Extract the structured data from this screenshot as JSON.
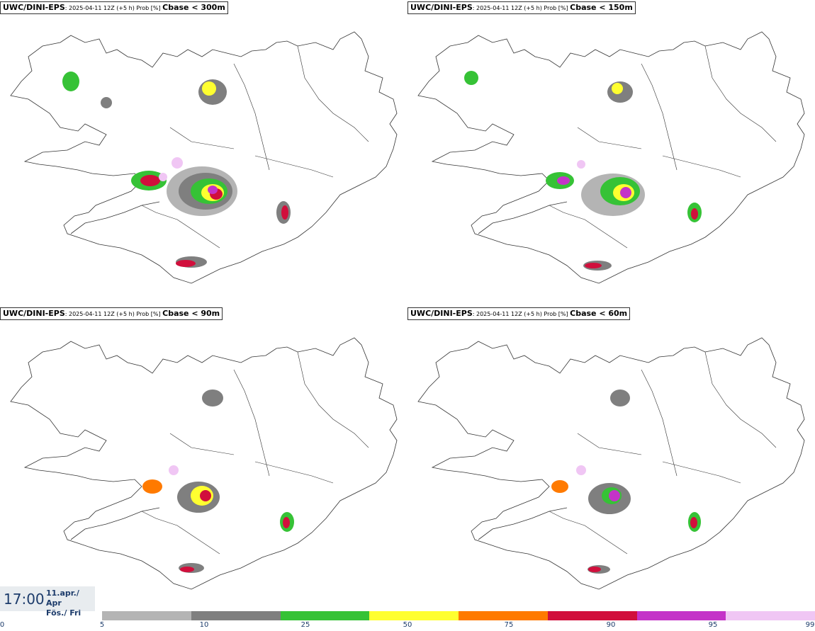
{
  "panels": [
    {
      "title_bold": "UWC/DINI-EPS",
      "title_mid": ": 2025-04-11 12Z (+5 h) Prob [%] ",
      "title_field": "Cbase < 300m"
    },
    {
      "title_bold": "UWC/DINI-EPS",
      "title_mid": ": 2025-04-11 12Z (+5 h) Prob [%] ",
      "title_field": "Cbase < 150m"
    },
    {
      "title_bold": "UWC/DINI-EPS",
      "title_mid": ": 2025-04-11 12Z (+5 h) Prob [%] ",
      "title_field": "Cbase < 90m"
    },
    {
      "title_bold": "UWC/DINI-EPS",
      "title_mid": ": 2025-04-11 12Z (+5 h) Prob [%] ",
      "title_field": "Cbase < 60m"
    }
  ],
  "time": {
    "clock": "17:00",
    "date_line": "11.apr./ Apr",
    "day_line": "Fös./ Fri"
  },
  "legend": {
    "ticks": [
      "0",
      "5",
      "10",
      "25",
      "50",
      "75",
      "90",
      "95",
      "99"
    ],
    "colors": [
      "#b4b4b4",
      "#7f7f7f",
      "#36c236",
      "#ffff30",
      "#ff7a00",
      "#d10f3c",
      "#c433c8",
      "#f0c6f4"
    ]
  },
  "palette": {
    "light_gray": "#b4b4b4",
    "dark_gray": "#7f7f7f",
    "green": "#36c236",
    "yellow": "#ffff30",
    "orange": "#ff7a00",
    "red": "#d10f3c",
    "magenta": "#c433c8",
    "pink": "#f0c6f4"
  }
}
